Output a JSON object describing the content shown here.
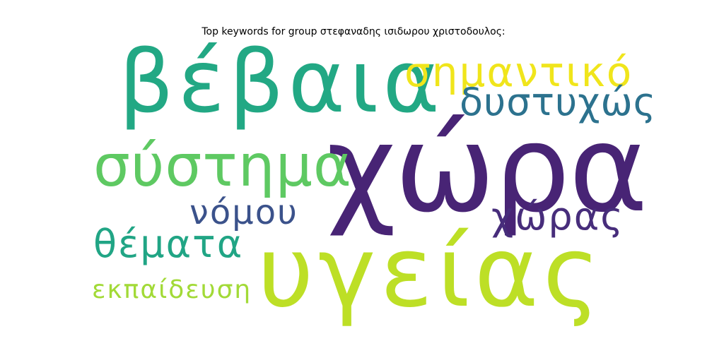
{
  "title": "Top keywords for group στεφαναδης ισιδωρου χριστοδουλος:",
  "words": [
    {
      "text": "χώρα",
      "color": "#482475"
    },
    {
      "text": "υγείας",
      "color": "#bddf26"
    },
    {
      "text": "βέβαια",
      "color": "#22a884"
    },
    {
      "text": "σύστημα",
      "color": "#5ec962"
    },
    {
      "text": "σημαντικό",
      "color": "#f0e51b"
    },
    {
      "text": "δυστυχώς",
      "color": "#2c728e"
    },
    {
      "text": "νόμου",
      "color": "#3b528b"
    },
    {
      "text": "χώρας",
      "color": "#472d7b"
    },
    {
      "text": "θέματα",
      "color": "#21a585"
    },
    {
      "text": "εκπαίδευση",
      "color": "#a2da37"
    }
  ]
}
